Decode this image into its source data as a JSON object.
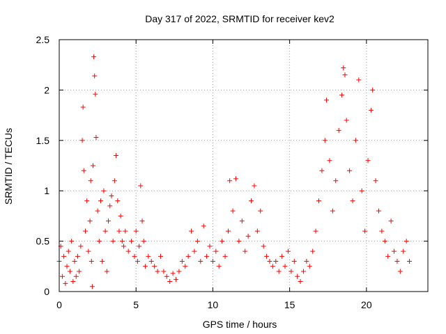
{
  "chart_data": {
    "type": "scatter",
    "title": "Day 317 of 2022, SRMTID for receiver kev2",
    "xlabel": "GPS time / hours",
    "ylabel": "SRMTID / TECUs",
    "xlim": [
      0,
      24
    ],
    "ylim": [
      0,
      2.5
    ],
    "xticks": [
      0,
      5,
      10,
      15,
      20
    ],
    "yticks": [
      0,
      0.5,
      1,
      1.5,
      2,
      2.5
    ],
    "xtick_labels": [
      "0",
      "5",
      "10",
      "15",
      "20"
    ],
    "ytick_labels": [
      "0",
      "0.5",
      "1",
      "1.5",
      "2",
      "2.5"
    ],
    "grid": true,
    "marker": "+",
    "color": "#ff0000",
    "series": [
      {
        "name": "kev2",
        "points": [
          [
            0.0,
            0.3
          ],
          [
            0.1,
            0.45
          ],
          [
            0.2,
            0.15
          ],
          [
            0.3,
            0.35
          ],
          [
            0.4,
            0.08
          ],
          [
            0.5,
            0.25
          ],
          [
            0.6,
            0.4
          ],
          [
            0.7,
            0.2
          ],
          [
            0.8,
            0.5
          ],
          [
            0.9,
            0.1
          ],
          [
            1.0,
            0.3
          ],
          [
            1.1,
            0.15
          ],
          [
            1.2,
            0.35
          ],
          [
            1.3,
            0.2
          ],
          [
            1.4,
            0.45
          ],
          [
            1.5,
            1.5
          ],
          [
            1.55,
            1.83
          ],
          [
            1.6,
            1.2
          ],
          [
            1.7,
            0.6
          ],
          [
            1.8,
            0.9
          ],
          [
            1.9,
            0.4
          ],
          [
            2.0,
            0.7
          ],
          [
            2.05,
            1.1
          ],
          [
            2.1,
            0.3
          ],
          [
            2.15,
            0.05
          ],
          [
            2.2,
            1.25
          ],
          [
            2.25,
            2.33
          ],
          [
            2.3,
            2.14
          ],
          [
            2.35,
            1.96
          ],
          [
            2.4,
            1.53
          ],
          [
            2.5,
            0.8
          ],
          [
            2.6,
            0.5
          ],
          [
            2.7,
            0.9
          ],
          [
            2.8,
            0.3
          ],
          [
            2.9,
            1.0
          ],
          [
            3.0,
            0.6
          ],
          [
            3.1,
            0.2
          ],
          [
            3.2,
            0.7
          ],
          [
            3.3,
            0.85
          ],
          [
            3.4,
            0.95
          ],
          [
            3.5,
            0.5
          ],
          [
            3.6,
            1.1
          ],
          [
            3.7,
            1.35
          ],
          [
            3.8,
            0.9
          ],
          [
            3.9,
            0.6
          ],
          [
            4.0,
            0.75
          ],
          [
            4.1,
            0.5
          ],
          [
            4.2,
            0.45
          ],
          [
            4.3,
            0.6
          ],
          [
            4.5,
            0.4
          ],
          [
            4.7,
            0.5
          ],
          [
            4.9,
            0.35
          ],
          [
            5.0,
            0.6
          ],
          [
            5.1,
            0.3
          ],
          [
            5.2,
            0.45
          ],
          [
            5.3,
            1.05
          ],
          [
            5.4,
            0.7
          ],
          [
            5.5,
            0.5
          ],
          [
            5.6,
            0.25
          ],
          [
            5.8,
            0.35
          ],
          [
            6.0,
            0.3
          ],
          [
            6.2,
            0.25
          ],
          [
            6.4,
            0.2
          ],
          [
            6.6,
            0.35
          ],
          [
            6.8,
            0.2
          ],
          [
            7.0,
            0.15
          ],
          [
            7.2,
            0.1
          ],
          [
            7.4,
            0.18
          ],
          [
            7.6,
            0.12
          ],
          [
            7.8,
            0.2
          ],
          [
            8.0,
            0.3
          ],
          [
            8.2,
            0.25
          ],
          [
            8.4,
            0.35
          ],
          [
            8.6,
            0.6
          ],
          [
            8.8,
            0.4
          ],
          [
            9.0,
            0.5
          ],
          [
            9.2,
            0.3
          ],
          [
            9.4,
            0.65
          ],
          [
            9.6,
            0.35
          ],
          [
            9.8,
            0.45
          ],
          [
            10.0,
            0.3
          ],
          [
            10.2,
            0.4
          ],
          [
            10.4,
            0.25
          ],
          [
            10.6,
            0.5
          ],
          [
            10.8,
            0.35
          ],
          [
            11.0,
            0.6
          ],
          [
            11.1,
            1.1
          ],
          [
            11.3,
            0.8
          ],
          [
            11.5,
            1.12
          ],
          [
            11.7,
            0.5
          ],
          [
            11.9,
            0.7
          ],
          [
            12.1,
            0.4
          ],
          [
            12.3,
            0.55
          ],
          [
            12.5,
            0.9
          ],
          [
            12.7,
            1.05
          ],
          [
            12.9,
            0.6
          ],
          [
            13.1,
            0.8
          ],
          [
            13.3,
            0.45
          ],
          [
            13.5,
            0.35
          ],
          [
            13.7,
            0.3
          ],
          [
            13.9,
            0.25
          ],
          [
            14.1,
            0.3
          ],
          [
            14.3,
            0.2
          ],
          [
            14.5,
            0.35
          ],
          [
            14.7,
            0.25
          ],
          [
            14.9,
            0.4
          ],
          [
            15.1,
            0.2
          ],
          [
            15.3,
            0.3
          ],
          [
            15.5,
            0.15
          ],
          [
            15.7,
            0.1
          ],
          [
            15.9,
            0.2
          ],
          [
            16.1,
            0.3
          ],
          [
            16.3,
            0.25
          ],
          [
            16.5,
            0.4
          ],
          [
            16.7,
            0.6
          ],
          [
            16.9,
            0.9
          ],
          [
            17.1,
            1.2
          ],
          [
            17.3,
            1.5
          ],
          [
            17.4,
            1.9
          ],
          [
            17.6,
            1.3
          ],
          [
            17.8,
            0.8
          ],
          [
            18.0,
            1.1
          ],
          [
            18.2,
            1.6
          ],
          [
            18.4,
            1.95
          ],
          [
            18.5,
            2.22
          ],
          [
            18.6,
            2.15
          ],
          [
            18.7,
            1.7
          ],
          [
            18.9,
            1.2
          ],
          [
            19.1,
            0.9
          ],
          [
            19.3,
            1.5
          ],
          [
            19.5,
            2.1
          ],
          [
            19.7,
            1.0
          ],
          [
            19.9,
            0.6
          ],
          [
            20.1,
            1.3
          ],
          [
            20.3,
            1.8
          ],
          [
            20.4,
            2.0
          ],
          [
            20.6,
            1.1
          ],
          [
            20.8,
            0.8
          ],
          [
            21.0,
            0.6
          ],
          [
            21.2,
            0.5
          ],
          [
            21.4,
            0.35
          ],
          [
            21.6,
            0.7
          ],
          [
            21.8,
            0.4
          ],
          [
            22.0,
            0.3
          ],
          [
            22.2,
            0.2
          ],
          [
            22.4,
            0.4
          ],
          [
            22.6,
            0.5
          ],
          [
            22.8,
            0.3
          ]
        ]
      }
    ]
  }
}
